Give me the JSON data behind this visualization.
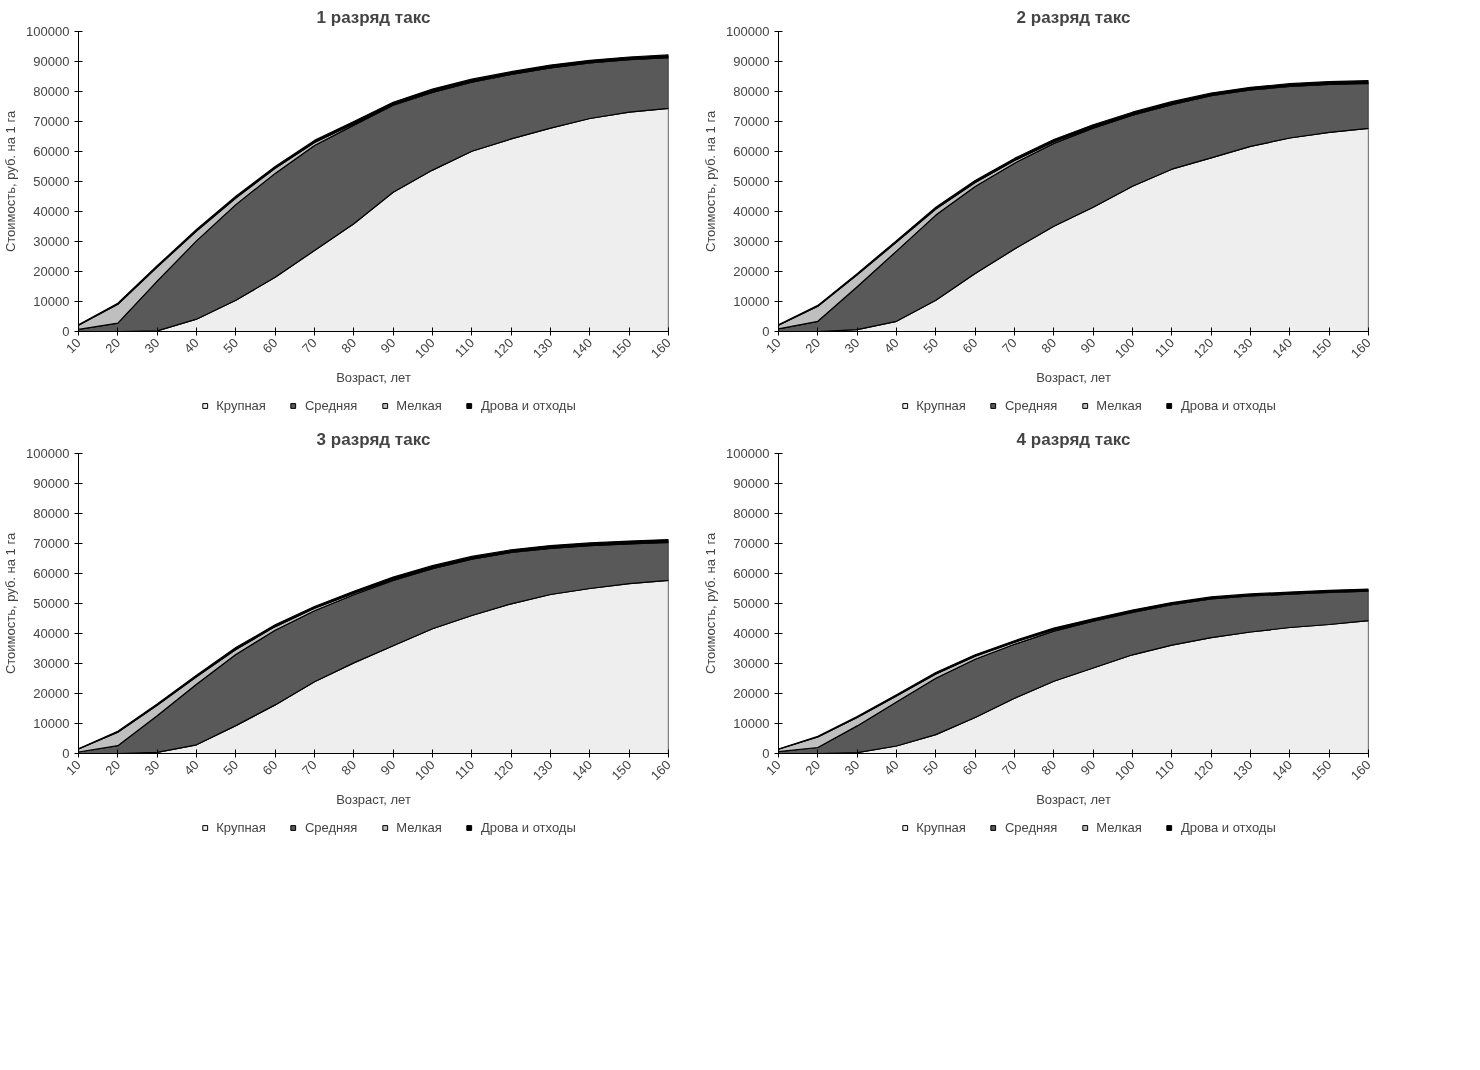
{
  "chart_data": [
    {
      "type": "area",
      "stacked": true,
      "title": "1 разряд такс",
      "xlabel": "Возраст, лет",
      "ylabel": "Стоимость, руб. на 1 га",
      "categories": [
        "10",
        "20",
        "30",
        "40",
        "50",
        "60",
        "70",
        "80",
        "90",
        "100",
        "110",
        "120",
        "130",
        "140",
        "150",
        "160"
      ],
      "ylim": [
        0,
        100000
      ],
      "yticks": [
        0,
        10000,
        20000,
        30000,
        40000,
        50000,
        60000,
        70000,
        80000,
        90000,
        100000
      ],
      "legend": "bottom",
      "series": [
        {
          "name": "Крупная",
          "color": "#eeeeee",
          "values": [
            0,
            0,
            200,
            4100,
            10400,
            18100,
            27000,
            35900,
            46400,
            53800,
            60100,
            64200,
            67800,
            71000,
            73100,
            74400
          ]
        },
        {
          "name": "Средняя",
          "color": "#595959",
          "values": [
            700,
            2800,
            16600,
            26100,
            31900,
            34600,
            35000,
            32900,
            29000,
            25900,
            23000,
            21500,
            20100,
            18500,
            17500,
            16900
          ]
        },
        {
          "name": "Мелкая",
          "color": "#bfbfbf",
          "values": [
            1400,
            6300,
            4700,
            3300,
            2200,
            1700,
            1000,
            500,
            300,
            400,
            300,
            200,
            200,
            200,
            200,
            200
          ]
        },
        {
          "name": "Дрова и отходы",
          "color": "#000000",
          "values": [
            100,
            300,
            400,
            500,
            600,
            600,
            700,
            700,
            700,
            700,
            700,
            700,
            700,
            700,
            700,
            700
          ]
        }
      ]
    },
    {
      "type": "area",
      "stacked": true,
      "title": "2 разряд такс",
      "xlabel": "Возраст, лет",
      "ylabel": "Стоимость, руб. на 1 га",
      "categories": [
        "10",
        "20",
        "30",
        "40",
        "50",
        "60",
        "70",
        "80",
        "90",
        "100",
        "110",
        "120",
        "130",
        "140",
        "150",
        "160"
      ],
      "ylim": [
        0,
        100000
      ],
      "yticks": [
        0,
        10000,
        20000,
        30000,
        40000,
        50000,
        60000,
        70000,
        80000,
        90000,
        100000
      ],
      "legend": "bottom",
      "series": [
        {
          "name": "Крупная",
          "color": "#eeeeee",
          "values": [
            0,
            0,
            600,
            3400,
            10400,
            19300,
            27500,
            35100,
            41400,
            48400,
            54100,
            57900,
            61700,
            64500,
            66400,
            67700
          ]
        },
        {
          "name": "Средняя",
          "color": "#595959",
          "values": [
            900,
            3400,
            14300,
            23400,
            28400,
            29000,
            28600,
            27600,
            26400,
            23700,
            21500,
            20700,
            18800,
            17200,
            16000,
            15000
          ]
        },
        {
          "name": "Мелкая",
          "color": "#bfbfbf",
          "values": [
            1200,
            5000,
            4000,
            3000,
            2000,
            1400,
            900,
            600,
            400,
            300,
            300,
            200,
            200,
            200,
            200,
            200
          ]
        },
        {
          "name": "Дрова и отходы",
          "color": "#000000",
          "values": [
            100,
            300,
            400,
            500,
            600,
            600,
            700,
            700,
            700,
            700,
            700,
            700,
            700,
            700,
            700,
            700
          ]
        }
      ]
    },
    {
      "type": "area",
      "stacked": true,
      "title": "3 разряд такс",
      "xlabel": "Возраст, лет",
      "ylabel": "Стоимость, руб. на 1 га",
      "categories": [
        "10",
        "20",
        "30",
        "40",
        "50",
        "60",
        "70",
        "80",
        "90",
        "100",
        "110",
        "120",
        "130",
        "140",
        "150",
        "160"
      ],
      "ylim": [
        0,
        100000
      ],
      "yticks": [
        0,
        10000,
        20000,
        30000,
        40000,
        50000,
        60000,
        70000,
        80000,
        90000,
        100000
      ],
      "legend": "bottom",
      "series": [
        {
          "name": "Крупная",
          "color": "#eeeeee",
          "values": [
            0,
            0,
            400,
            2900,
            9300,
            16200,
            23900,
            30200,
            35900,
            41600,
            46000,
            49900,
            53000,
            55000,
            56600,
            57700
          ]
        },
        {
          "name": "Средняя",
          "color": "#595959",
          "values": [
            500,
            2600,
            12200,
            20200,
            23700,
            24900,
            23700,
            22700,
            21800,
            20000,
            18800,
            17100,
            15400,
            14300,
            13300,
            12700
          ]
        },
        {
          "name": "Мелкая",
          "color": "#bfbfbf",
          "values": [
            1000,
            4500,
            3500,
            2500,
            1700,
            1200,
            800,
            500,
            400,
            300,
            200,
            200,
            200,
            200,
            200,
            200
          ]
        },
        {
          "name": "Дрова и отходы",
          "color": "#000000",
          "values": [
            100,
            300,
            400,
            500,
            600,
            600,
            600,
            700,
            700,
            700,
            700,
            700,
            700,
            700,
            700,
            700
          ]
        }
      ]
    },
    {
      "type": "area",
      "stacked": true,
      "title": "4 разряд такс",
      "xlabel": "Возраст, лет",
      "ylabel": "Стоимость, руб. на 1 га",
      "categories": [
        "10",
        "20",
        "30",
        "40",
        "50",
        "60",
        "70",
        "80",
        "90",
        "100",
        "110",
        "120",
        "130",
        "140",
        "150",
        "160"
      ],
      "ylim": [
        0,
        100000
      ],
      "yticks": [
        0,
        10000,
        20000,
        30000,
        40000,
        50000,
        60000,
        70000,
        80000,
        90000,
        100000
      ],
      "legend": "bottom",
      "series": [
        {
          "name": "Крупная",
          "color": "#eeeeee",
          "values": [
            0,
            0,
            300,
            2500,
            6300,
            12000,
            18400,
            24100,
            28500,
            32900,
            36100,
            38600,
            40500,
            42000,
            43000,
            44300
          ]
        },
        {
          "name": "Средняя",
          "color": "#595959",
          "values": [
            600,
            2000,
            8900,
            14700,
            18800,
            19400,
            18000,
            16700,
            15600,
            14100,
            13500,
            12900,
            12000,
            11100,
            10700,
            9800
          ]
        },
        {
          "name": "Мелкая",
          "color": "#bfbfbf",
          "values": [
            800,
            3500,
            2800,
            2000,
            1400,
            1000,
            700,
            500,
            300,
            300,
            200,
            200,
            200,
            200,
            200,
            200
          ]
        },
        {
          "name": "Дрова и отходы",
          "color": "#000000",
          "values": [
            100,
            200,
            300,
            400,
            500,
            500,
            500,
            500,
            500,
            500,
            500,
            500,
            500,
            500,
            500,
            500
          ]
        }
      ]
    }
  ]
}
